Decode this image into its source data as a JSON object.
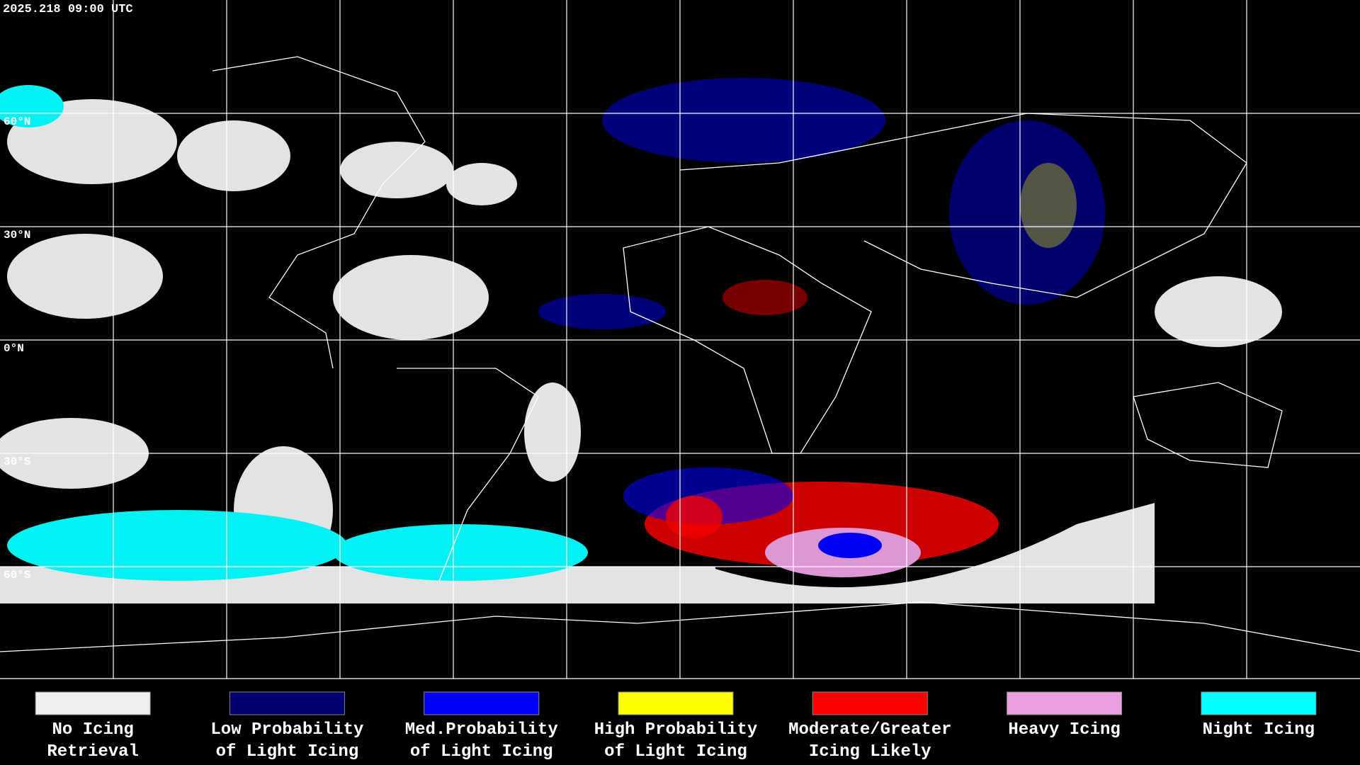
{
  "header": {
    "timestamp": "2025.218 09:00 UTC"
  },
  "map": {
    "lat_labels": [
      "60°N",
      "30°N",
      "0°N",
      "30°S",
      "60°S"
    ]
  },
  "legend": {
    "items": [
      {
        "color": "#f0f0f0",
        "label": [
          "No Icing",
          "Retrieval"
        ]
      },
      {
        "color": "#000070",
        "label": [
          "Low Probability",
          "of Light Icing"
        ]
      },
      {
        "color": "#0000ff",
        "label": [
          "Med.Probability",
          "of Light Icing"
        ]
      },
      {
        "color": "#ffff00",
        "label": [
          "High Probability",
          "of Light Icing"
        ]
      },
      {
        "color": "#ff0000",
        "label": [
          "Moderate/Greater",
          "Icing Likely"
        ]
      },
      {
        "color": "#e8a0e0",
        "label": [
          "Heavy Icing"
        ]
      },
      {
        "color": "#00ffff",
        "label": [
          "Night Icing"
        ]
      }
    ]
  }
}
